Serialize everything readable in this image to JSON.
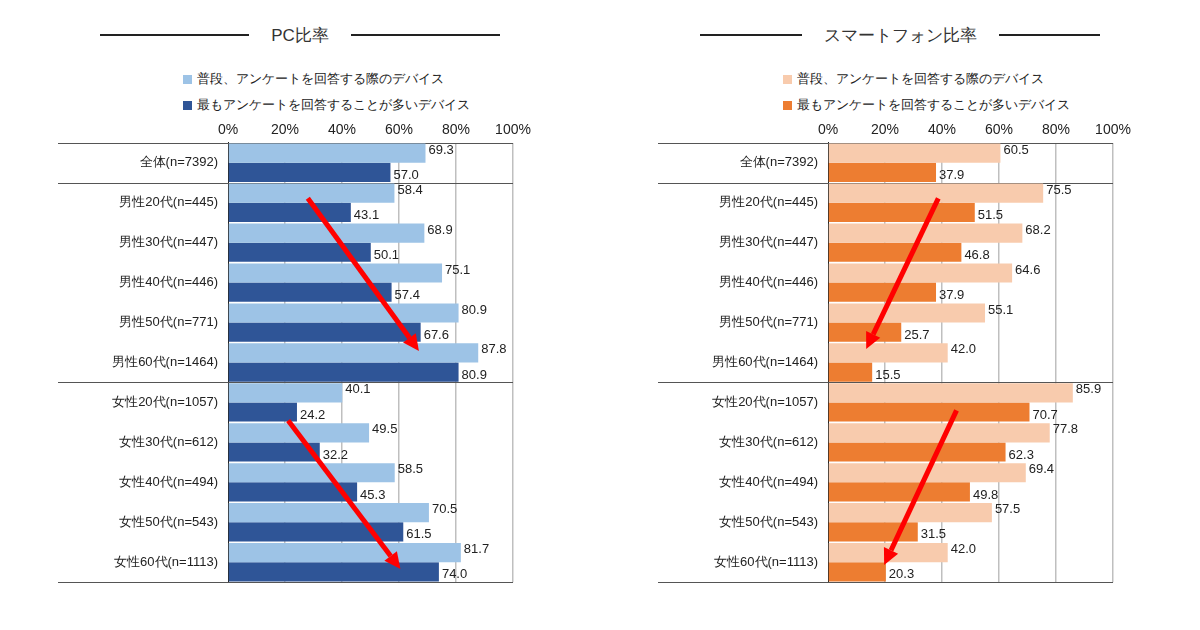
{
  "chart_data": [
    {
      "type": "bar",
      "title": "PC比率",
      "orientation": "horizontal",
      "categories": [
        "全体(n=7392)",
        "男性20代(n=445)",
        "男性30代(n=447)",
        "男性40代(n=446)",
        "男性50代(n=771)",
        "男性60代(n=1464)",
        "女性20代(n=1057)",
        "女性30代(n=612)",
        "女性40代(n=494)",
        "女性50代(n=543)",
        "女性60代(n=1113)"
      ],
      "series": [
        {
          "name": "普段、アンケートを回答する際のデバイス",
          "color": "#9dc3e6",
          "values": [
            69.3,
            58.4,
            68.9,
            75.1,
            80.9,
            87.8,
            40.1,
            49.5,
            58.5,
            70.5,
            81.7
          ],
          "value_labels": [
            "69.3",
            "58.4",
            "68.9",
            "75.1",
            "80.9",
            "87.8",
            "40.1",
            "49.5",
            "58.5",
            "70.5",
            "81.7"
          ]
        },
        {
          "name": "最もアンケートを回答することが多いデバイス",
          "color": "#2f5597",
          "values": [
            57.0,
            43.1,
            50.1,
            57.4,
            67.6,
            80.9,
            24.2,
            32.2,
            45.3,
            61.5,
            74.0
          ],
          "value_labels": [
            "57.0",
            "43.1",
            "50.1",
            "57.4",
            "67.6",
            "80.9",
            "24.2",
            "32.2",
            "45.3",
            "61.5",
            "74.0"
          ]
        }
      ],
      "xlim": [
        0,
        100
      ],
      "xticks": [
        {
          "value": 0,
          "label": "0%"
        },
        {
          "value": 20,
          "label": "20%"
        },
        {
          "value": 40,
          "label": "40%"
        },
        {
          "value": 60,
          "label": "60%"
        },
        {
          "value": 80,
          "label": "80%"
        },
        {
          "value": 100,
          "label": "100%"
        }
      ],
      "grid": true,
      "data_labels": true,
      "legend": "top"
    },
    {
      "type": "bar",
      "title": "スマートフォン比率",
      "orientation": "horizontal",
      "categories": [
        "全体(n=7392)",
        "男性20代(n=445)",
        "男性30代(n=447)",
        "男性40代(n=446)",
        "男性50代(n=771)",
        "男性60代(n=1464)",
        "女性20代(n=1057)",
        "女性30代(n=612)",
        "女性40代(n=494)",
        "女性50代(n=543)",
        "女性60代(n=1113)"
      ],
      "series": [
        {
          "name": "普段、アンケートを回答する際のデバイス",
          "color": "#f8cbad",
          "values": [
            60.5,
            75.5,
            68.2,
            64.6,
            55.1,
            42.0,
            85.9,
            77.8,
            69.4,
            57.5,
            42.0
          ],
          "value_labels": [
            "60.5",
            "75.5",
            "68.2",
            "64.6",
            "55.1",
            "42.0",
            "85.9",
            "77.8",
            "69.4",
            "57.5",
            "42.0"
          ]
        },
        {
          "name": "最もアンケートを回答することが多いデバイス",
          "color": "#ed7d31",
          "values": [
            37.9,
            51.5,
            46.8,
            37.9,
            25.7,
            15.5,
            70.7,
            62.3,
            49.8,
            31.5,
            20.3
          ],
          "value_labels": [
            "37.9",
            "51.5",
            "46.8",
            "37.9",
            "25.7",
            "15.5",
            "70.7",
            "62.3",
            "49.8",
            "31.5",
            "20.3"
          ]
        }
      ],
      "xlim": [
        0,
        100
      ],
      "xticks": [
        {
          "value": 0,
          "label": "0%"
        },
        {
          "value": 20,
          "label": "20%"
        },
        {
          "value": 40,
          "label": "40%"
        },
        {
          "value": 60,
          "label": "60%"
        },
        {
          "value": 80,
          "label": "80%"
        },
        {
          "value": 100,
          "label": "100%"
        }
      ],
      "grid": true,
      "data_labels": true,
      "legend": "top"
    }
  ]
}
